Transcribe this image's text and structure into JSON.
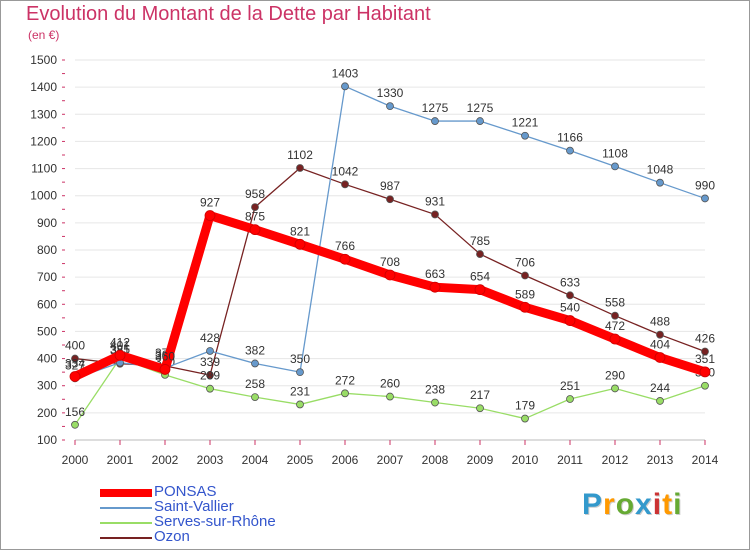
{
  "header": {
    "title": "Evolution du Montant de la Dette par Habitant",
    "subtitle": "(en €)"
  },
  "brand": {
    "letters": [
      "P",
      "r",
      "o",
      "x",
      "i",
      "t",
      "i"
    ],
    "colors": [
      "#3399cc",
      "#ff9900",
      "#66aa33",
      "#3399cc",
      "#cc3333",
      "#ff9900",
      "#66aa33"
    ]
  },
  "chart_data": {
    "type": "line",
    "x": [
      "2000",
      "2001",
      "2002",
      "2003",
      "2004",
      "2005",
      "2006",
      "2007",
      "2008",
      "2009",
      "2010",
      "2011",
      "2012",
      "2013",
      "2014"
    ],
    "ylim": [
      100,
      1500
    ],
    "yticks": [
      100,
      200,
      300,
      400,
      500,
      600,
      700,
      800,
      900,
      1000,
      1100,
      1200,
      1300,
      1400,
      1500
    ],
    "grid": "horizontal",
    "legend_position": "bottom-left",
    "series": [
      {
        "name": "Ozon",
        "color": "#772222",
        "values": [
          400,
          381,
          373,
          339,
          958,
          1102,
          1042,
          987,
          931,
          785,
          706,
          633,
          558,
          488,
          426
        ]
      },
      {
        "name": "Serves-sur-Rhône",
        "color": "#99dd66",
        "values": [
          156,
          401,
          340,
          289,
          258,
          231,
          272,
          260,
          238,
          217,
          179,
          251,
          290,
          244,
          300
        ]
      },
      {
        "name": "Saint-Vallier",
        "color": "#6699cc",
        "values": [
          327,
          385,
          365,
          428,
          382,
          350,
          1403,
          1330,
          1275,
          1275,
          1221,
          1166,
          1108,
          1048,
          990
        ]
      },
      {
        "name": "PONSAS",
        "color": "#ff0000",
        "values": [
          334,
          412,
          360,
          927,
          875,
          821,
          766,
          708,
          663,
          654,
          589,
          540,
          472,
          404,
          351
        ]
      }
    ]
  }
}
